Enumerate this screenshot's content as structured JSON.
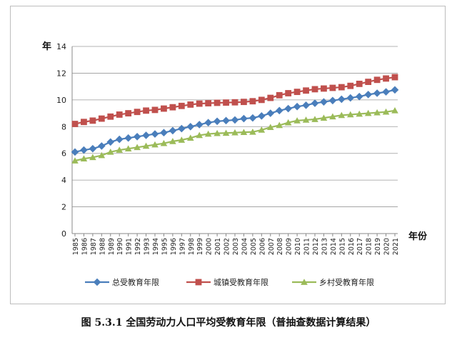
{
  "caption": "图 5.3.1 全国劳动力人口平均受教育年限（普抽查数据计算结果）",
  "chart_data": {
    "type": "line",
    "y_unit_label": "年",
    "x_unit_label": "年份",
    "ylim": [
      0,
      14
    ],
    "yticks": [
      0,
      2,
      4,
      6,
      8,
      10,
      12,
      14
    ],
    "grid": "horizontal",
    "legend_position": "bottom",
    "x": [
      "1985",
      "1986",
      "1987",
      "1988",
      "1989",
      "1990",
      "1991",
      "1992",
      "1993",
      "1994",
      "1995",
      "1996",
      "1997",
      "1998",
      "1999",
      "2000",
      "2001",
      "2002",
      "2003",
      "2004",
      "2005",
      "2006",
      "2007",
      "2008",
      "2009",
      "2010",
      "2011",
      "2012",
      "2013",
      "2014",
      "2015",
      "2016",
      "2017",
      "2018",
      "2019",
      "2020",
      "2021"
    ],
    "series": [
      {
        "name": "总受教育年限",
        "color": "#4a7ebb",
        "marker": "diamond",
        "values": [
          6.1,
          6.25,
          6.35,
          6.55,
          6.85,
          7.05,
          7.15,
          7.25,
          7.35,
          7.45,
          7.55,
          7.7,
          7.85,
          8.0,
          8.15,
          8.3,
          8.4,
          8.45,
          8.5,
          8.6,
          8.65,
          8.8,
          9.0,
          9.2,
          9.35,
          9.5,
          9.6,
          9.75,
          9.85,
          9.95,
          10.05,
          10.15,
          10.25,
          10.4,
          10.5,
          10.6,
          10.75
        ]
      },
      {
        "name": "城镇受教育年限",
        "color": "#c0504d",
        "marker": "square",
        "values": [
          8.2,
          8.35,
          8.45,
          8.6,
          8.75,
          8.9,
          9.0,
          9.1,
          9.2,
          9.25,
          9.35,
          9.45,
          9.55,
          9.65,
          9.72,
          9.75,
          9.78,
          9.8,
          9.82,
          9.85,
          9.9,
          10.0,
          10.15,
          10.35,
          10.5,
          10.6,
          10.7,
          10.8,
          10.85,
          10.9,
          10.95,
          11.05,
          11.2,
          11.35,
          11.5,
          11.6,
          11.7
        ]
      },
      {
        "name": "乡村受教育年限",
        "color": "#9bbb59",
        "marker": "triangle",
        "values": [
          5.45,
          5.6,
          5.7,
          5.85,
          6.1,
          6.25,
          6.35,
          6.45,
          6.55,
          6.65,
          6.75,
          6.9,
          7.0,
          7.15,
          7.35,
          7.45,
          7.5,
          7.52,
          7.55,
          7.58,
          7.6,
          7.75,
          7.95,
          8.1,
          8.3,
          8.45,
          8.5,
          8.55,
          8.65,
          8.75,
          8.85,
          8.9,
          8.95,
          9.0,
          9.05,
          9.1,
          9.2
        ]
      }
    ]
  }
}
